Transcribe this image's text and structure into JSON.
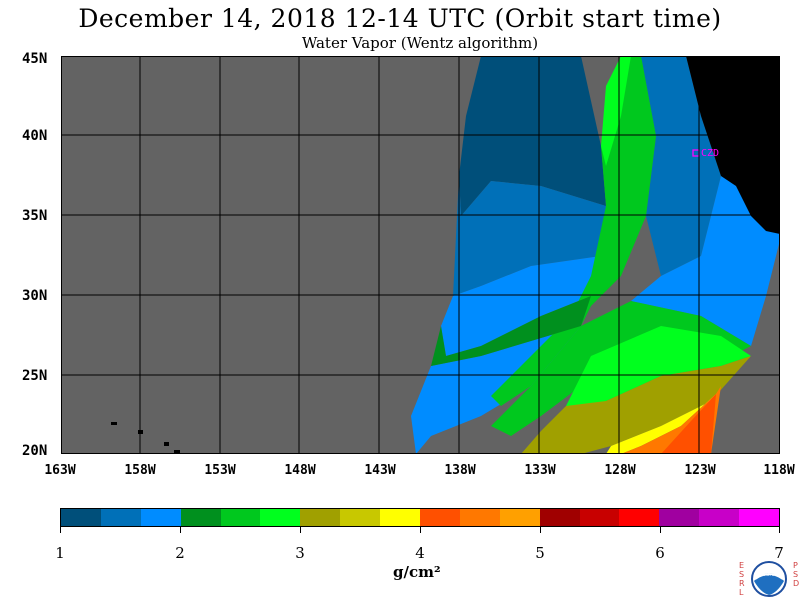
{
  "header": {
    "title": "December 14, 2018  12-14 UTC  (Orbit start time)",
    "subtitle": "Water Vapor (Wentz algorithm)"
  },
  "map": {
    "latitude_labels": [
      "45N",
      "40N",
      "35N",
      "30N",
      "25N",
      "20N"
    ],
    "longitude_labels": [
      "163W",
      "158W",
      "153W",
      "148W",
      "143W",
      "138W",
      "133W",
      "128W",
      "123W",
      "118W"
    ],
    "station_label": "CZD",
    "colors": {
      "no_data": "#636363",
      "land": "#000000",
      "grid": "#000000",
      "station": "#ff00ff"
    }
  },
  "colorbar": {
    "colors": [
      "#004f7a",
      "#0070b8",
      "#008cff",
      "#00901e",
      "#00c81e",
      "#00ff1e",
      "#a0a000",
      "#c8c800",
      "#ffff00",
      "#ff5000",
      "#ff7800",
      "#ffa000",
      "#a00000",
      "#c80000",
      "#ff0000",
      "#a000a0",
      "#c800c8",
      "#ff00ff"
    ],
    "tick_labels": [
      "1",
      "2",
      "3",
      "4",
      "5",
      "6",
      "7"
    ],
    "units": "g/cm²",
    "range": [
      1,
      7
    ]
  },
  "logo": {
    "left_letters": "ESRL",
    "right_letters": "PSD",
    "emblem": "NOAA"
  }
}
